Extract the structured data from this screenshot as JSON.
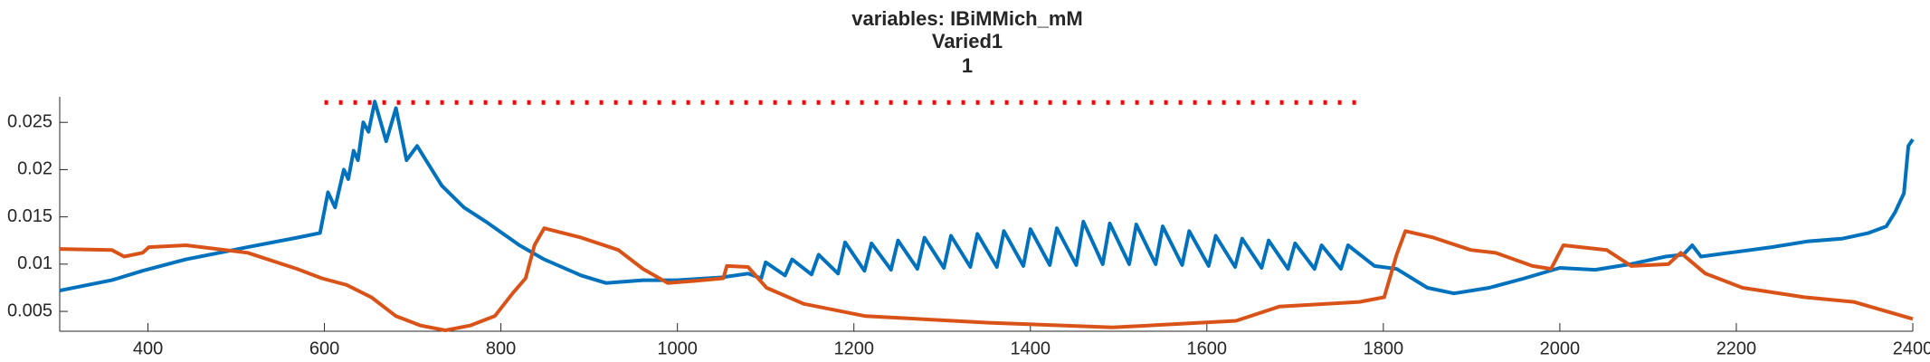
{
  "chart_data": {
    "type": "line",
    "title": "variables: IBiMMich_mM",
    "subtitle": "Varied1",
    "subtitle2": "1",
    "xlim": [
      300,
      2400
    ],
    "xticks": [
      400,
      600,
      800,
      1000,
      1200,
      1400,
      1600,
      1800,
      2000,
      2200,
      2400
    ],
    "ylim": [
      0.0029,
      0.0277
    ],
    "yticks": [
      0.005,
      0.01,
      0.015,
      0.02,
      0.025
    ],
    "series": [
      {
        "color": "#0072bd",
        "x": [
          300,
          359,
          394,
          443,
          513,
          569,
          595,
          604,
          612,
          622,
          627,
          633,
          638,
          644,
          650,
          657,
          670,
          681,
          693,
          705,
          733,
          758,
          783,
          821,
          849,
          891,
          919,
          961,
          1000,
          1050,
          1080,
          1095,
          1100,
          1122,
          1130,
          1152,
          1160,
          1182,
          1190,
          1212,
          1220,
          1242,
          1250,
          1272,
          1280,
          1302,
          1310,
          1332,
          1340,
          1362,
          1370,
          1392,
          1400,
          1422,
          1430,
          1452,
          1460,
          1482,
          1490,
          1512,
          1520,
          1542,
          1550,
          1572,
          1580,
          1602,
          1610,
          1632,
          1640,
          1662,
          1670,
          1692,
          1700,
          1722,
          1730,
          1752,
          1760,
          1790,
          1815,
          1850,
          1880,
          1920,
          1960,
          2000,
          2040,
          2080,
          2120,
          2140,
          2150,
          2160,
          2200,
          2240,
          2280,
          2320,
          2350,
          2370,
          2380,
          2390,
          2395,
          2400
        ],
        "values": [
          0.0072,
          0.0083,
          0.0093,
          0.0105,
          0.0118,
          0.0128,
          0.0133,
          0.0176,
          0.016,
          0.02,
          0.019,
          0.022,
          0.021,
          0.025,
          0.024,
          0.0272,
          0.023,
          0.0265,
          0.021,
          0.0225,
          0.0183,
          0.016,
          0.0145,
          0.012,
          0.0105,
          0.0088,
          0.008,
          0.0083,
          0.0083,
          0.0086,
          0.009,
          0.0085,
          0.0102,
          0.0088,
          0.0105,
          0.0089,
          0.011,
          0.009,
          0.0123,
          0.0093,
          0.0122,
          0.0094,
          0.0125,
          0.0095,
          0.0128,
          0.0096,
          0.013,
          0.0097,
          0.0132,
          0.0097,
          0.0135,
          0.0098,
          0.0137,
          0.0099,
          0.0138,
          0.0099,
          0.0145,
          0.01,
          0.0143,
          0.01,
          0.0142,
          0.01,
          0.014,
          0.0099,
          0.0135,
          0.0098,
          0.013,
          0.0097,
          0.0127,
          0.0096,
          0.0125,
          0.0095,
          0.0122,
          0.0095,
          0.012,
          0.0095,
          0.012,
          0.0098,
          0.0095,
          0.0075,
          0.0069,
          0.0075,
          0.0085,
          0.0096,
          0.0094,
          0.01,
          0.0108,
          0.011,
          0.012,
          0.0108,
          0.0113,
          0.0118,
          0.0124,
          0.0127,
          0.0133,
          0.014,
          0.0155,
          0.0175,
          0.0225,
          0.0232
        ]
      },
      {
        "color": "#d95319",
        "x": [
          300,
          359,
          373,
          394,
          401,
          443,
          513,
          569,
          597,
          625,
          653,
          681,
          709,
          737,
          765,
          793,
          814,
          828,
          838,
          849,
          891,
          933,
          961,
          989,
          1017,
          1052,
          1056,
          1080,
          1101,
          1143,
          1213,
          1353,
          1493,
          1633,
          1682,
          1773,
          1801,
          1815,
          1825,
          1857,
          1899,
          1927,
          1969,
          1990,
          2004,
          2053,
          2081,
          2123,
          2137,
          2165,
          2207,
          2277,
          2333,
          2400
        ],
        "values": [
          0.0116,
          0.0115,
          0.0108,
          0.0112,
          0.0118,
          0.012,
          0.0112,
          0.0095,
          0.0085,
          0.0078,
          0.0065,
          0.0045,
          0.0035,
          0.003,
          0.0035,
          0.0045,
          0.007,
          0.0085,
          0.012,
          0.0138,
          0.0128,
          0.0115,
          0.0095,
          0.008,
          0.0082,
          0.0085,
          0.0098,
          0.0097,
          0.0075,
          0.0058,
          0.0045,
          0.0038,
          0.0033,
          0.004,
          0.0055,
          0.006,
          0.0065,
          0.011,
          0.0135,
          0.0128,
          0.0115,
          0.0112,
          0.0098,
          0.0095,
          0.012,
          0.0115,
          0.0098,
          0.01,
          0.0112,
          0.009,
          0.0075,
          0.0065,
          0.006,
          0.0042
        ]
      },
      {
        "color": "#ff0000",
        "linestyle": "dotted",
        "x": [
          600,
          1780
        ],
        "values": [
          0.0271,
          0.0271
        ]
      }
    ]
  }
}
